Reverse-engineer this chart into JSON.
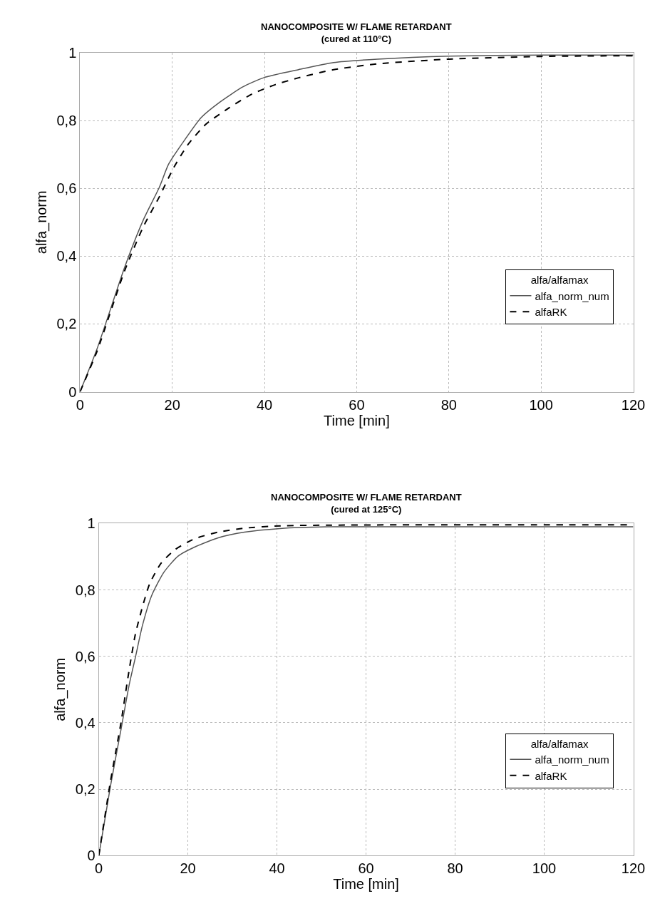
{
  "chart_data": [
    {
      "type": "line",
      "title": "NANOCOMPOSITE W/ FLAME RETARDANT",
      "subtitle": "(cured at 110°C)",
      "xlabel": "Time [min]",
      "ylabel": "alfa_norm",
      "legend_title": "alfa/alfamax",
      "xlim": [
        0,
        120
      ],
      "xticks": [
        0,
        20,
        40,
        60,
        80,
        100,
        120
      ],
      "ylim": [
        0,
        1
      ],
      "yticks": [
        0,
        {
          "value": 0.2,
          "label": "0,2"
        },
        {
          "value": 0.4,
          "label": "0,4"
        },
        {
          "value": 0.6,
          "label": "0,6"
        },
        {
          "value": 0.8,
          "label": "0,8"
        },
        1
      ],
      "grid": true,
      "legend": "bottom right",
      "marker": "none",
      "series": [
        {
          "name": "alfa_norm_num",
          "color": "#555555",
          "line_style": "solid",
          "x": [
            0,
            3.7,
            9.7,
            13.7,
            17.2,
            19.2,
            22.2,
            26.3,
            30.3,
            35.3,
            39.8,
            47.4,
            55,
            64.5,
            80,
            100,
            120
          ],
          "values": [
            0,
            0.127,
            0.368,
            0.506,
            0.603,
            0.671,
            0.733,
            0.809,
            0.854,
            0.899,
            0.926,
            0.95,
            0.971,
            0.981,
            0.99,
            0.993,
            0.993
          ]
        },
        {
          "name": "alfaRK",
          "color": "#000000",
          "line_style": "dashed",
          "x": [
            0,
            3.7,
            9.7,
            13.7,
            17.2,
            20.2,
            23.3,
            27.3,
            32.3,
            37.3,
            42.4,
            47.4,
            55,
            64.5,
            80,
            100,
            120
          ],
          "values": [
            0,
            0.12,
            0.358,
            0.486,
            0.575,
            0.658,
            0.727,
            0.789,
            0.837,
            0.878,
            0.906,
            0.926,
            0.95,
            0.967,
            0.981,
            0.989,
            0.991
          ]
        }
      ]
    },
    {
      "type": "line",
      "title": "NANOCOMPOSITE W/ FLAME RETARDANT",
      "subtitle": "(cured at 125°C)",
      "xlabel": "Time [min]",
      "ylabel": "alfa_norm",
      "legend_title": "alfa/alfamax",
      "xlim": [
        0,
        120
      ],
      "xticks": [
        0,
        20,
        40,
        60,
        80,
        100,
        120
      ],
      "ylim": [
        0,
        1
      ],
      "yticks": [
        0,
        {
          "value": 0.2,
          "label": "0,2"
        },
        {
          "value": 0.4,
          "label": "0,4"
        },
        {
          "value": 0.6,
          "label": "0,6"
        },
        {
          "value": 0.8,
          "label": "0,8"
        },
        1
      ],
      "grid": true,
      "legend": "bottom right",
      "marker": "none",
      "series": [
        {
          "name": "alfa_norm_num",
          "color": "#555555",
          "line_style": "solid",
          "x": [
            0,
            2.6,
            5,
            6.8,
            8.2,
            9.8,
            11.9,
            14.6,
            17.8,
            21.5,
            26.8,
            32.7,
            40.7,
            51.4,
            70,
            90,
            120
          ],
          "values": [
            0,
            0.208,
            0.381,
            0.513,
            0.596,
            0.693,
            0.784,
            0.853,
            0.902,
            0.929,
            0.957,
            0.974,
            0.985,
            0.99,
            0.99,
            0.99,
            0.99
          ]
        },
        {
          "name": "alfaRK",
          "color": "#000000",
          "line_style": "dashed",
          "x": [
            0,
            2.6,
            5,
            6.6,
            8.2,
            9.8,
            11.4,
            14,
            17.2,
            21.5,
            26.8,
            32.7,
            40.7,
            51.4,
            70,
            90,
            120
          ],
          "values": [
            0,
            0.222,
            0.402,
            0.541,
            0.666,
            0.749,
            0.818,
            0.881,
            0.922,
            0.954,
            0.974,
            0.986,
            0.993,
            0.995,
            0.996,
            0.996,
            0.996
          ]
        }
      ]
    }
  ]
}
